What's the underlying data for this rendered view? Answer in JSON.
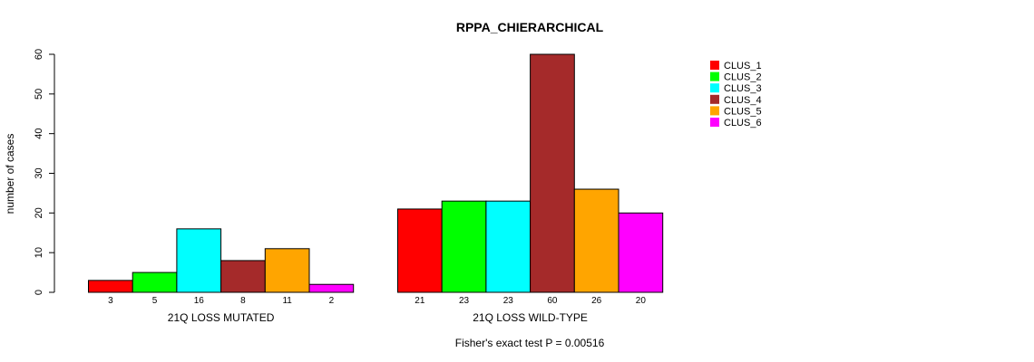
{
  "chart_data": {
    "type": "bar",
    "title": "RPPA_CHIERARCHICAL",
    "ylabel": "number of cases",
    "xlabel": "",
    "ylim": [
      0,
      60
    ],
    "yticks": [
      0,
      10,
      20,
      30,
      40,
      50,
      60
    ],
    "grid": false,
    "legend_position": "top-right",
    "groups": [
      "21Q LOSS MUTATED",
      "21Q LOSS WILD-TYPE"
    ],
    "series": [
      {
        "name": "CLUS_1",
        "color": "#ff0000",
        "values": [
          3,
          21
        ]
      },
      {
        "name": "CLUS_2",
        "color": "#00ff00",
        "values": [
          5,
          23
        ]
      },
      {
        "name": "CLUS_3",
        "color": "#00ffff",
        "values": [
          16,
          23
        ]
      },
      {
        "name": "CLUS_4",
        "color": "#a52a2a",
        "values": [
          8,
          60
        ]
      },
      {
        "name": "CLUS_5",
        "color": "#ffa500",
        "values": [
          11,
          26
        ]
      },
      {
        "name": "CLUS_6",
        "color": "#ff00ff",
        "values": [
          2,
          20
        ]
      }
    ],
    "count_labels": [
      [
        "3",
        "5",
        "16",
        "8",
        "11",
        "2"
      ],
      [
        "21",
        "23",
        "23",
        "60",
        "26",
        "20"
      ]
    ],
    "footer": "Fisher's exact test P = 0.00516"
  }
}
